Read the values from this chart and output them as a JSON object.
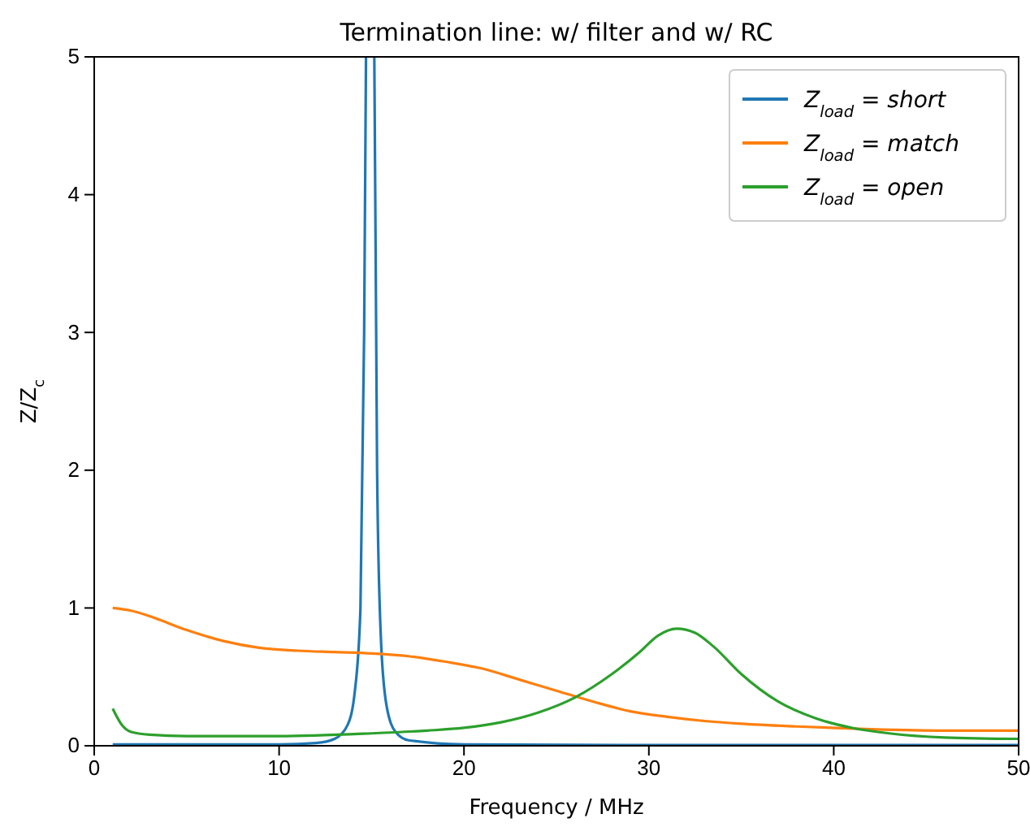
{
  "chart_data": {
    "type": "line",
    "title": "Termination line: w/ filter and w/ RC",
    "xlabel": "Frequency / MHz",
    "ylabel": "Z/Z$_{c}$",
    "xlim": [
      0,
      50
    ],
    "ylim": [
      0,
      5
    ],
    "xticks": [
      0,
      10,
      20,
      30,
      40,
      50
    ],
    "yticks": [
      0,
      1,
      2,
      3,
      4,
      5
    ],
    "legend": "top right",
    "grid": false,
    "series": [
      {
        "name": "Z$_{load}$ = short",
        "color": "#1f77b4",
        "x": [
          1,
          10,
          12,
          13,
          13.7,
          14.1,
          14.4,
          14.6,
          14.7,
          14.9,
          15.15,
          15.3,
          15.5,
          15.8,
          16.3,
          17,
          20,
          30,
          50
        ],
        "values": [
          0.01,
          0.01,
          0.02,
          0.05,
          0.15,
          0.4,
          1,
          3,
          5,
          null,
          5,
          2,
          0.8,
          0.3,
          0.1,
          0.04,
          0.01,
          0.005,
          0.005
        ]
      },
      {
        "name": "Z$_{load}$ = match",
        "color": "#ff7f0e",
        "x": [
          1,
          2,
          3,
          5,
          7,
          9,
          11,
          13,
          15,
          17,
          19,
          21,
          23,
          25,
          27,
          29,
          31,
          33,
          35,
          38,
          42,
          46,
          50
        ],
        "values": [
          1.0,
          0.98,
          0.94,
          0.84,
          0.76,
          0.71,
          0.69,
          0.68,
          0.67,
          0.65,
          0.61,
          0.56,
          0.48,
          0.4,
          0.32,
          0.25,
          0.21,
          0.18,
          0.16,
          0.14,
          0.12,
          0.11,
          0.11
        ]
      },
      {
        "name": "Z$_{load}$ = open",
        "color": "#2ca02c",
        "x": [
          1,
          1.5,
          2,
          3,
          5,
          10,
          15,
          18,
          20,
          22,
          24,
          26,
          28,
          29.5,
          30.5,
          31.5,
          32.5,
          33.5,
          35,
          37,
          39,
          41,
          43,
          46,
          50
        ],
        "values": [
          0.27,
          0.15,
          0.1,
          0.08,
          0.07,
          0.07,
          0.09,
          0.11,
          0.13,
          0.17,
          0.24,
          0.35,
          0.52,
          0.68,
          0.8,
          0.85,
          0.82,
          0.72,
          0.52,
          0.32,
          0.2,
          0.13,
          0.09,
          0.06,
          0.05
        ]
      }
    ]
  }
}
